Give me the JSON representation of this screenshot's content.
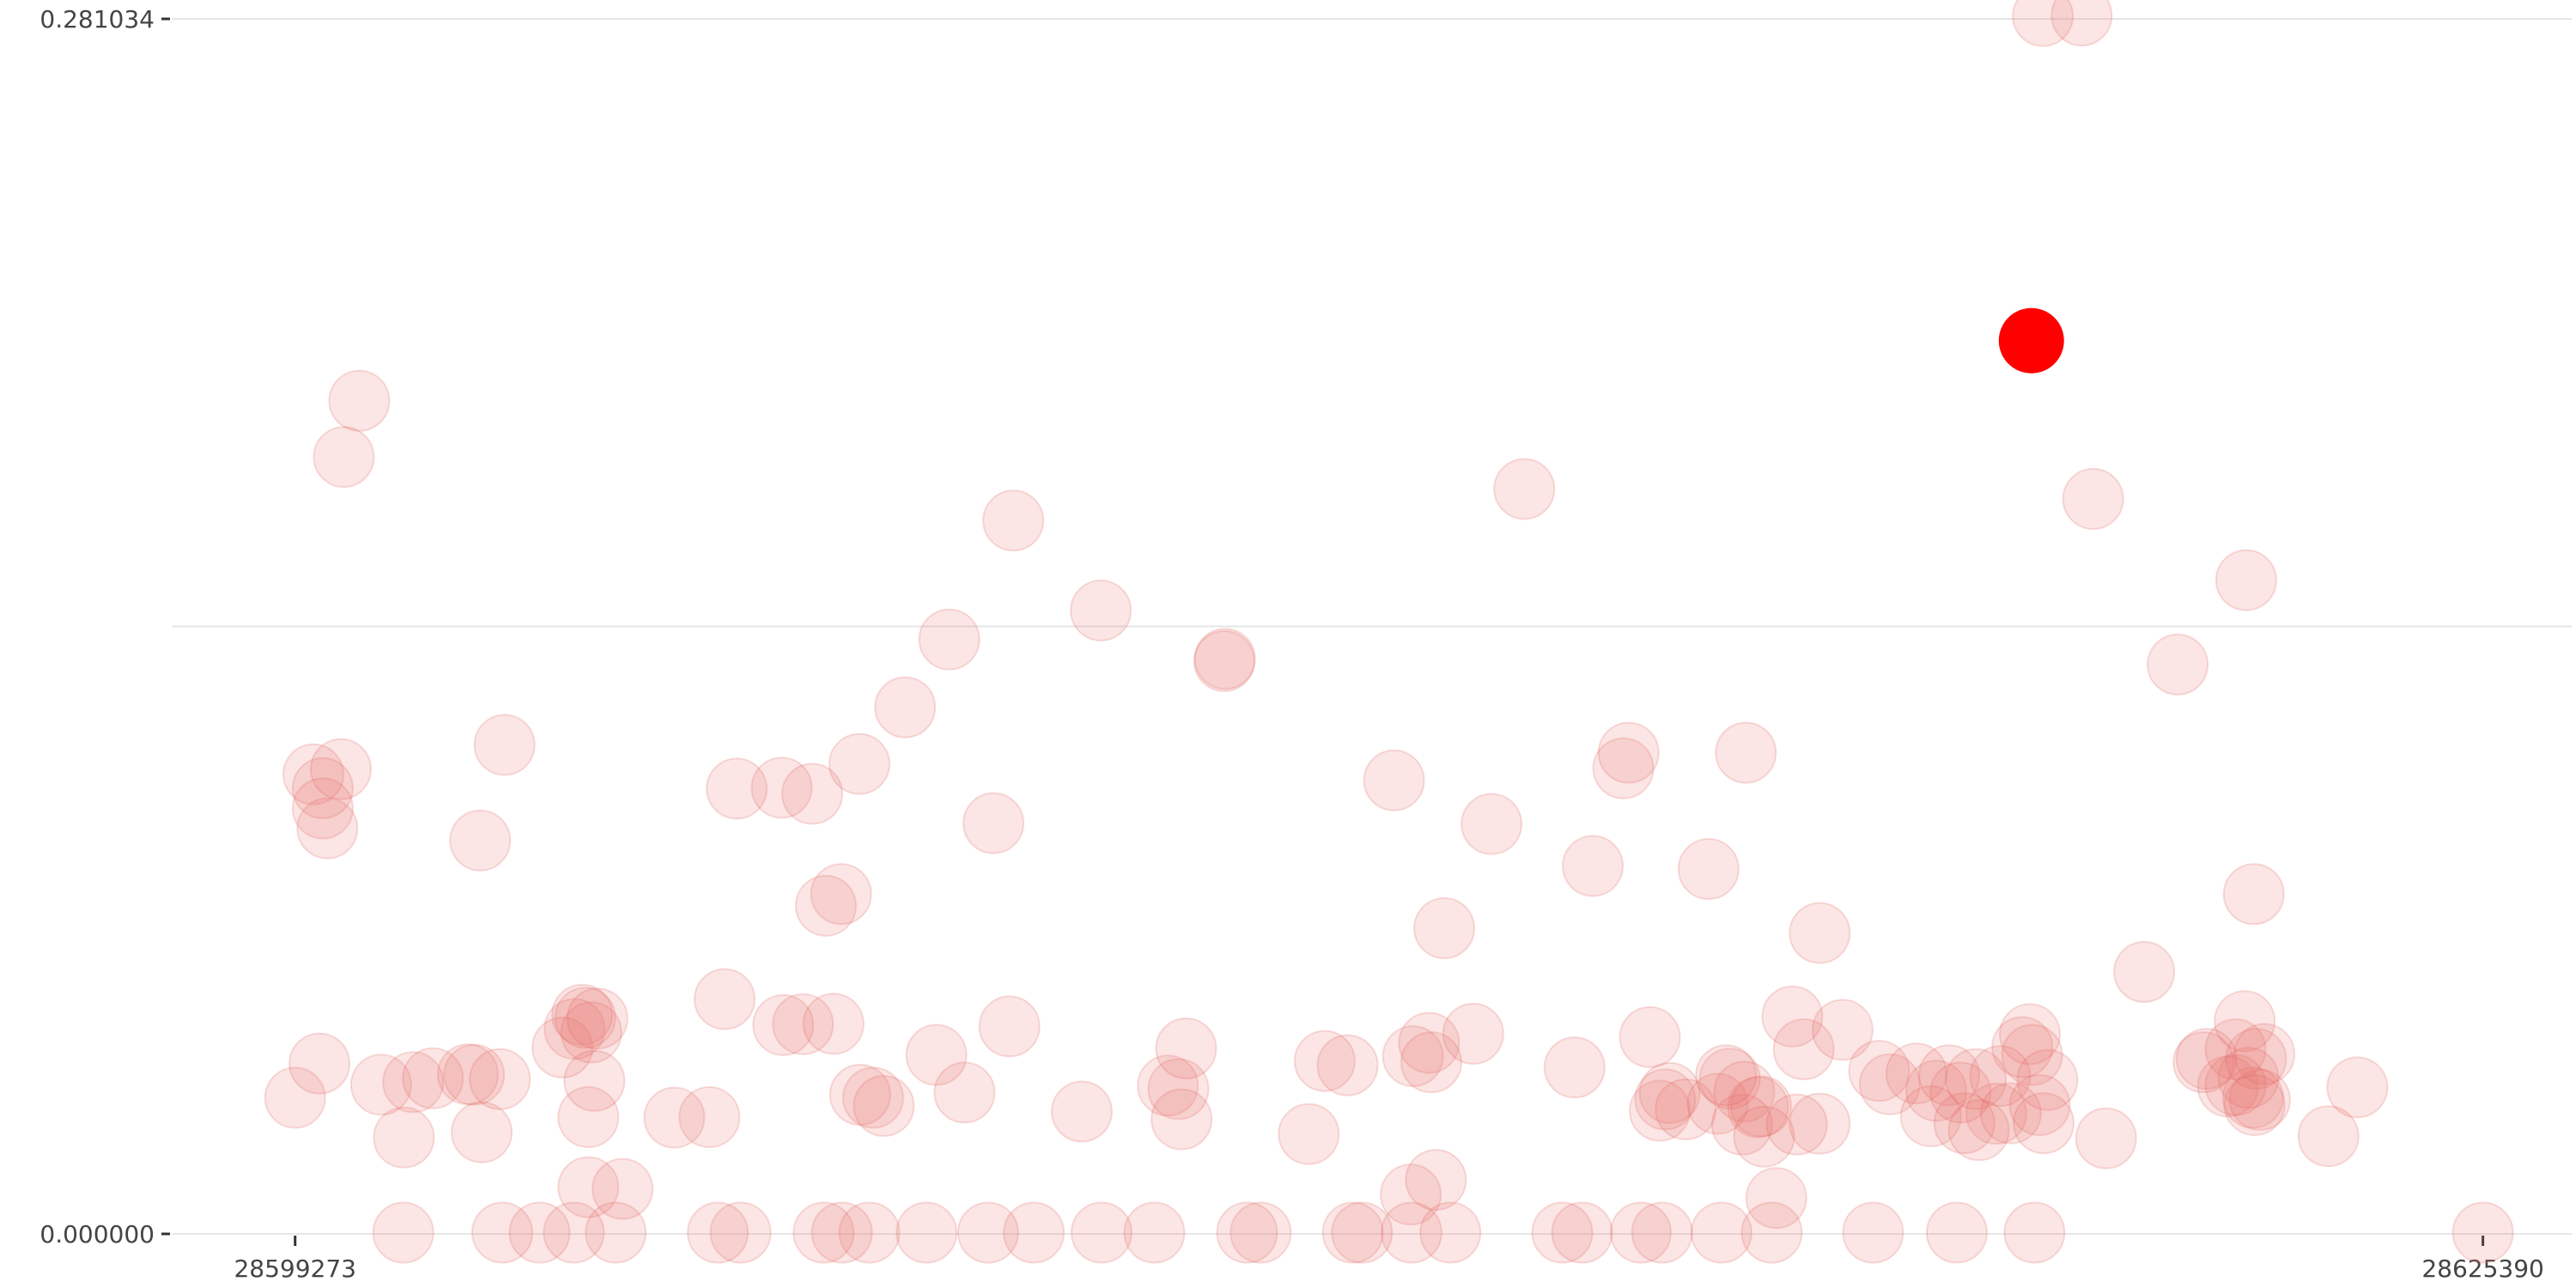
{
  "chart_data": {
    "type": "scatter",
    "title": "",
    "xlabel": "",
    "ylabel": "",
    "xlim": [
      28597800,
      28626450
    ],
    "ylim": [
      0.0,
      0.281034
    ],
    "x_ticks": [
      28599273,
      28625390
    ],
    "x_tick_labels": [
      "28599273",
      "28625390"
    ],
    "y_ticks": [
      0.0,
      0.140517,
      0.281034
    ],
    "y_tick_labels": [
      "0.000000",
      "",
      "0.281034"
    ],
    "grid": "horizontal",
    "colors": {
      "point": "#e8746f",
      "highlight": "#ff0000"
    },
    "series": [
      {
        "points": [
          [
            28599273,
            0.0315
          ],
          [
            28599564,
            0.0394
          ],
          [
            28599491,
            0.1063
          ],
          [
            28599603,
            0.1031
          ],
          [
            28599819,
            0.1075
          ],
          [
            28599854,
            0.1797
          ],
          [
            28599658,
            0.0938
          ],
          [
            28599603,
            0.0984
          ],
          [
            28600039,
            0.1927
          ],
          [
            28600300,
            0.0345
          ],
          [
            28600682,
            0.0351
          ],
          [
            28600918,
            0.036
          ],
          [
            28600571,
            0.0223
          ],
          [
            28601336,
            0.0369
          ],
          [
            28601409,
            0.0368
          ],
          [
            28601500,
            0.0235
          ],
          [
            28601482,
            0.091
          ],
          [
            28601718,
            0.0358
          ],
          [
            28601773,
            0.1131
          ],
          [
            28602464,
            0.0431
          ],
          [
            28602609,
            0.0474
          ],
          [
            28602700,
            0.0507
          ],
          [
            28602737,
            0.05
          ],
          [
            28602809,
            0.0466
          ],
          [
            28602773,
            0.027
          ],
          [
            28602882,
            0.0498
          ],
          [
            28602846,
            0.0354
          ],
          [
            28602773,
            0.0108
          ],
          [
            28603182,
            0.0104
          ],
          [
            28603800,
            0.0269
          ],
          [
            28604219,
            0.027
          ],
          [
            28604400,
            0.0543
          ],
          [
            28604545,
            0.103
          ],
          [
            28605100,
            0.0483
          ],
          [
            28605082,
            0.1032
          ],
          [
            28605336,
            0.0485
          ],
          [
            28605446,
            0.1018
          ],
          [
            28605700,
            0.0486
          ],
          [
            28605791,
            0.0786
          ],
          [
            28605609,
            0.0759
          ],
          [
            28606173,
            0.0315
          ],
          [
            28606300,
            0.0296
          ],
          [
            28606009,
            0.1087
          ],
          [
            28606018,
            0.0322
          ],
          [
            28606555,
            0.1218
          ],
          [
            28606928,
            0.0414
          ],
          [
            28607264,
            0.0327
          ],
          [
            28607082,
            0.1375
          ],
          [
            28607609,
            0.095
          ],
          [
            28607800,
            0.048
          ],
          [
            28608664,
            0.0283
          ],
          [
            28609691,
            0.0343
          ],
          [
            28609818,
            0.0335
          ],
          [
            28609855,
            0.0265
          ],
          [
            28609909,
            0.0429
          ],
          [
            28608891,
            0.1442
          ],
          [
            28607846,
            0.165
          ],
          [
            28610364,
            0.1325
          ],
          [
            28610373,
            0.133
          ],
          [
            28611373,
            0.0231
          ],
          [
            28611564,
            0.04
          ],
          [
            28611837,
            0.039
          ],
          [
            28612391,
            0.1049
          ],
          [
            28612618,
            0.0411
          ],
          [
            28612836,
            0.0397
          ],
          [
            28612809,
            0.0442
          ],
          [
            28612591,
            0.0091
          ],
          [
            28612891,
            0.0125
          ],
          [
            28612991,
            0.0707
          ],
          [
            28613337,
            0.0463
          ],
          [
            28613555,
            0.0948
          ],
          [
            28613946,
            0.1723
          ],
          [
            28614764,
            0.0851
          ],
          [
            28614546,
            0.0385
          ],
          [
            28615128,
            0.1077
          ],
          [
            28615192,
            0.1113
          ],
          [
            28615446,
            0.0455
          ],
          [
            28615564,
            0.0285
          ],
          [
            28615682,
            0.0326
          ],
          [
            28615628,
            0.0311
          ],
          [
            28615873,
            0.0288
          ],
          [
            28616255,
            0.0301
          ],
          [
            28616146,
            0.0844
          ],
          [
            28616591,
            0.1113
          ],
          [
            28616400,
            0.0359
          ],
          [
            28616573,
            0.0329
          ],
          [
            28616546,
            0.0253
          ],
          [
            28616737,
            0.0293
          ],
          [
            28616773,
            0.0295
          ],
          [
            28616355,
            0.0367
          ],
          [
            28616809,
            0.0225
          ],
          [
            28616955,
            0.0083
          ],
          [
            28617146,
            0.0503
          ],
          [
            28617282,
            0.0427
          ],
          [
            28617200,
            0.0253
          ],
          [
            28617473,
            0.0696
          ],
          [
            28617473,
            0.0255
          ],
          [
            28617746,
            0.0472
          ],
          [
            28618182,
            0.0377
          ],
          [
            28618310,
            0.0346
          ],
          [
            28618628,
            0.0371
          ],
          [
            28618864,
            0.0331
          ],
          [
            28619019,
            0.0367
          ],
          [
            28618800,
            0.0272
          ],
          [
            28619200,
            0.0256
          ],
          [
            28619155,
            0.0327
          ],
          [
            28619337,
            0.0358
          ],
          [
            28619628,
            0.0365
          ],
          [
            28619582,
            0.0278
          ],
          [
            28619373,
            0.024
          ],
          [
            28619755,
            0.0279
          ],
          [
            28619982,
            0.0462
          ],
          [
            28619891,
            0.0432
          ],
          [
            28620100,
            0.0298
          ],
          [
            28620146,
            0.0256
          ],
          [
            28620009,
            0.0414
          ],
          [
            28620191,
            0.0356
          ],
          [
            28620137,
            0.2817
          ],
          [
            28620600,
            0.2818
          ],
          [
            28620737,
            0.17
          ],
          [
            28620891,
            0.0221
          ],
          [
            28621346,
            0.0606
          ],
          [
            28621746,
            0.1317
          ],
          [
            28622055,
            0.0397
          ],
          [
            28622091,
            0.0405
          ],
          [
            28622346,
            0.0341
          ],
          [
            28622437,
            0.0427
          ],
          [
            28622546,
            0.0492
          ],
          [
            28622564,
            0.1512
          ],
          [
            28622591,
            0.0361
          ],
          [
            28622646,
            0.0315
          ],
          [
            28622682,
            0.0405
          ],
          [
            28622728,
            0.031
          ],
          [
            28622782,
            0.0416
          ],
          [
            28622655,
            0.0786
          ],
          [
            28622664,
            0.0298
          ],
          [
            28622437,
            0.0344
          ],
          [
            28623546,
            0.0226
          ],
          [
            28623891,
            0.0339
          ],
          [
            28625390,
            0.0003
          ],
          [
            28620037,
            0.0003
          ],
          [
            28619110,
            0.0003
          ],
          [
            28618110,
            0.0003
          ],
          [
            28616900,
            0.0003
          ],
          [
            28616300,
            0.0003
          ],
          [
            28615591,
            0.0003
          ],
          [
            28615337,
            0.0003
          ],
          [
            28614637,
            0.0003
          ],
          [
            28614400,
            0.0003
          ],
          [
            28613064,
            0.0003
          ],
          [
            28612600,
            0.0003
          ],
          [
            28612009,
            0.0003
          ],
          [
            28611900,
            0.0003
          ],
          [
            28610800,
            0.0003
          ],
          [
            28610637,
            0.0003
          ],
          [
            28609530,
            0.0003
          ],
          [
            28608900,
            0.0003
          ],
          [
            28608091,
            0.0003
          ],
          [
            28607546,
            0.0003
          ],
          [
            28606810,
            0.0003
          ],
          [
            28606128,
            0.0003
          ],
          [
            28605800,
            0.0003
          ],
          [
            28605582,
            0.0003
          ],
          [
            28604591,
            0.0003
          ],
          [
            28604319,
            0.0003
          ],
          [
            28603100,
            0.0003
          ],
          [
            28602600,
            0.0003
          ],
          [
            28602191,
            0.0003
          ],
          [
            28601746,
            0.0003
          ],
          [
            28600564,
            0.0003
          ]
        ]
      },
      {
        "highlight": true,
        "points": [
          [
            28620000,
            0.2066
          ]
        ]
      }
    ]
  }
}
